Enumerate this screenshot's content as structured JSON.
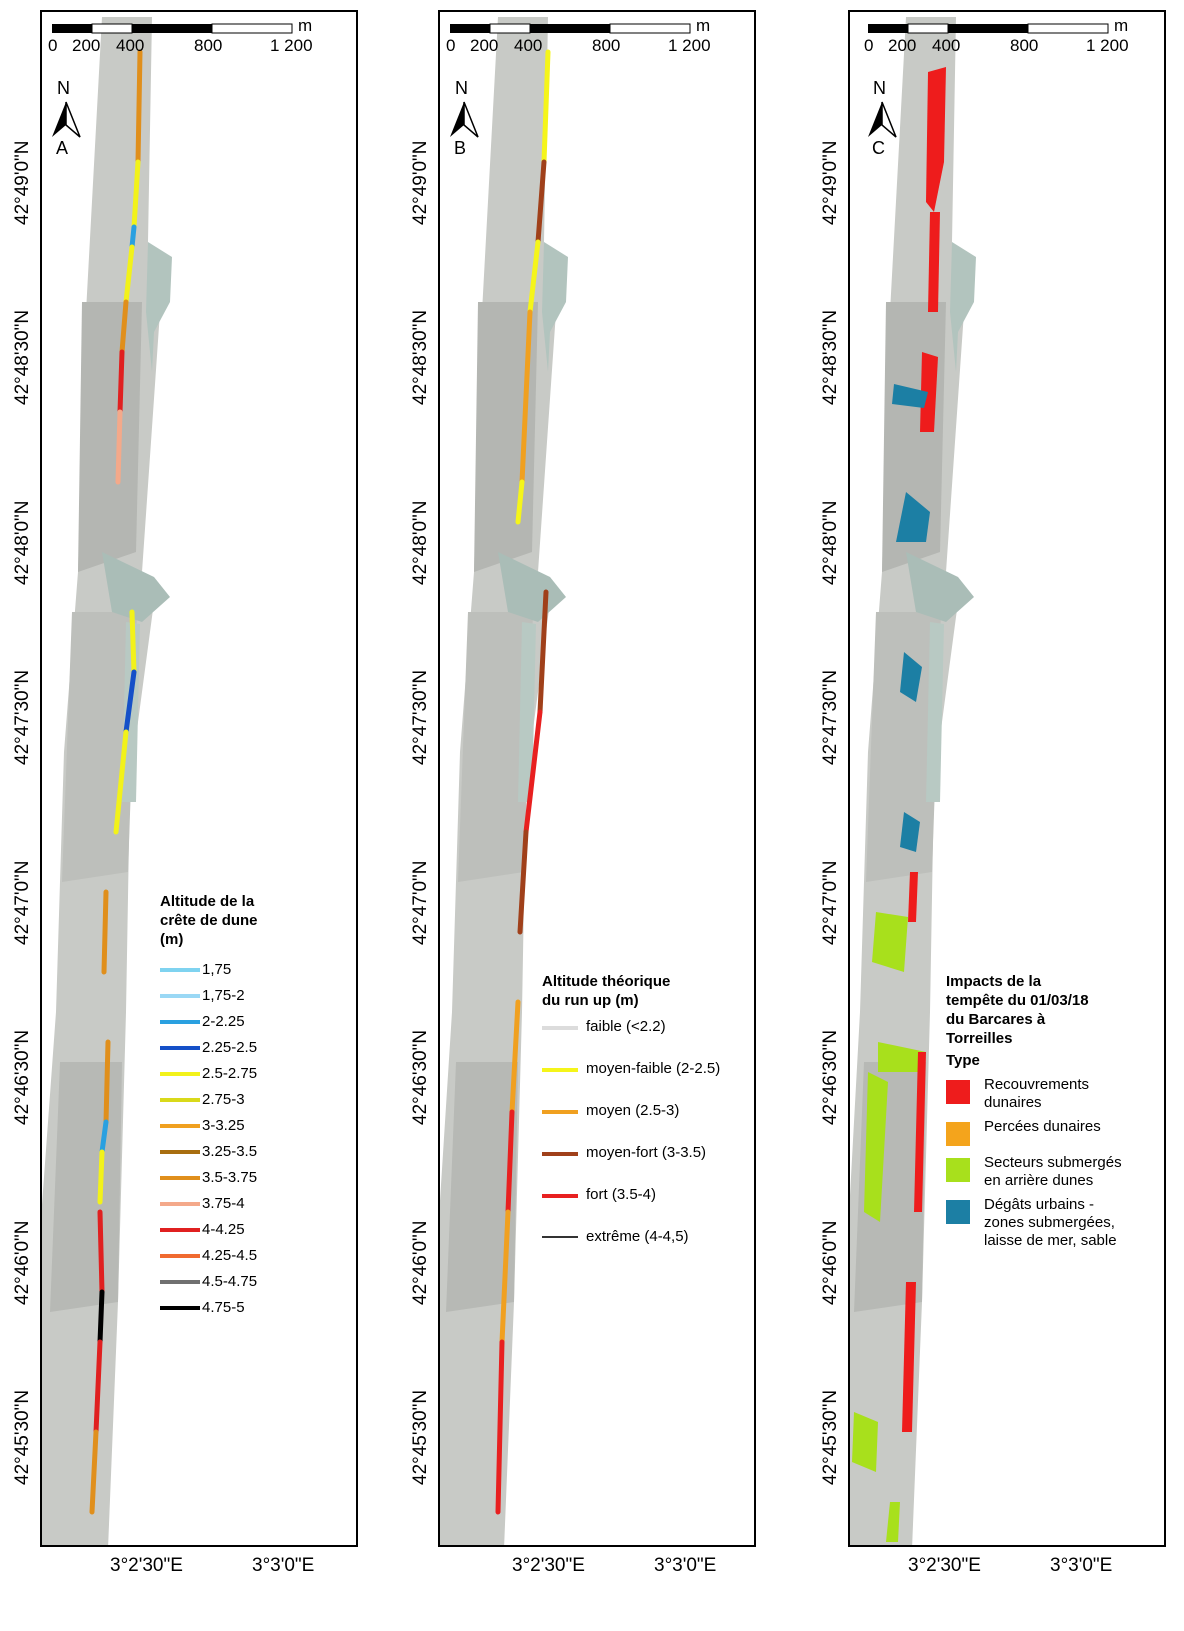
{
  "scale_bar": {
    "unit": "m",
    "labels": [
      "0",
      "200",
      "400",
      "800",
      "1 200"
    ]
  },
  "north_label": "N",
  "latitude_labels": [
    "42°49'0\"N",
    "42°48'30\"N",
    "42°48'0\"N",
    "42°47'30\"N",
    "42°47'0\"N",
    "42°46'30\"N",
    "42°46'0\"N",
    "42°45'30\"N"
  ],
  "longitude_labels": [
    "3°2'30\"E",
    "3°3'0\"E"
  ],
  "panels": [
    {
      "letter": "A",
      "legend": {
        "title_lines": [
          "Altitude de la",
          "crête de dune",
          "(m)"
        ],
        "items": [
          {
            "label": "1,75",
            "color": "#7fd3f0"
          },
          {
            "label": "1,75-2",
            "color": "#9ad8f5"
          },
          {
            "label": "2-2.25",
            "color": "#2aa0e0"
          },
          {
            "label": "2.25-2.5",
            "color": "#1550c8"
          },
          {
            "label": "2.5-2.75",
            "color": "#f2f21a"
          },
          {
            "label": "2.75-3",
            "color": "#d9d91a"
          },
          {
            "label": "3-3.25",
            "color": "#f0a020"
          },
          {
            "label": "3.25-3.5",
            "color": "#a86e10"
          },
          {
            "label": "3.5-3.75",
            "color": "#e08f1c"
          },
          {
            "label": "3.75-4",
            "color": "#f4a98a"
          },
          {
            "label": "4-4.25",
            "color": "#e02020"
          },
          {
            "label": "4.25-4.5",
            "color": "#f06a30"
          },
          {
            "label": "4.5-4.75",
            "color": "#707070"
          },
          {
            "label": "4.75-5",
            "color": "#000000"
          }
        ]
      }
    },
    {
      "letter": "B",
      "legend": {
        "title_lines": [
          "Altitude théorique",
          "du run up (m)"
        ],
        "items": [
          {
            "label": "faible (<2.2)",
            "color": "#dcdcdc"
          },
          {
            "label": "moyen-faible (2-2.5)",
            "color": "#f5f51a"
          },
          {
            "label": "moyen (2.5-3)",
            "color": "#f0a020"
          },
          {
            "label": "moyen-fort (3-3.5)",
            "color": "#a0401a"
          },
          {
            "label": "fort (3.5-4)",
            "color": "#e82020"
          },
          {
            "label": "extrême (4-4,5)",
            "color": "#333333"
          }
        ]
      }
    },
    {
      "letter": "C",
      "legend": {
        "title_lines": [
          "Impacts de la",
          "tempête du 01/03/18",
          "du Barcares à",
          "Torreilles"
        ],
        "subtitle": "Type",
        "items": [
          {
            "label": "Recouvrements dunaires",
            "color": "#ee1c1c"
          },
          {
            "label": "Percées dunaires",
            "color": "#f4a41c"
          },
          {
            "label": "Secteurs submergés en arrière dunes",
            "color": "#a8e01c"
          },
          {
            "label": "Dégâts urbains - zones submergées, laisse de mer, sable",
            "color": "#1c7fa4"
          }
        ]
      }
    }
  ]
}
